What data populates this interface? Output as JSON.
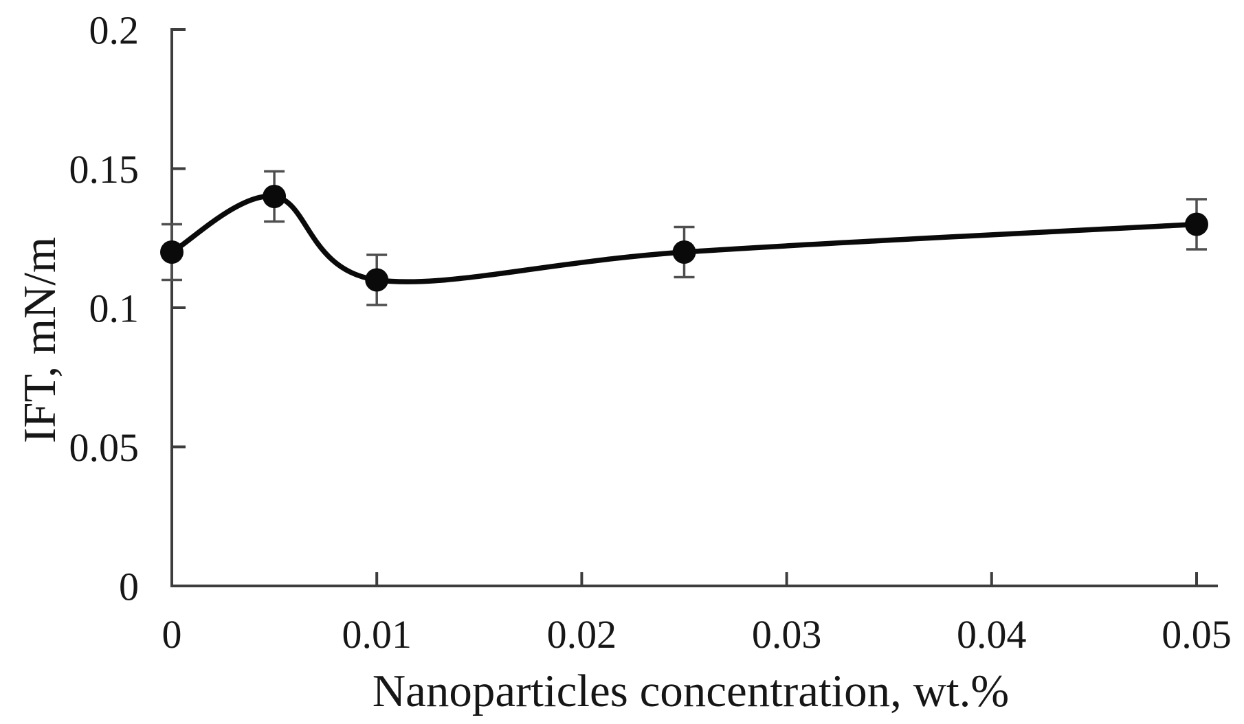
{
  "chart_data": {
    "type": "line",
    "title": "",
    "xlabel": "Nanoparticles concentration, wt.%",
    "ylabel": "IFT, mN/m",
    "x": [
      0,
      0.005,
      0.01,
      0.025,
      0.05
    ],
    "y": [
      0.12,
      0.14,
      0.11,
      0.12,
      0.13
    ],
    "y_error": [
      0.01,
      0.009,
      0.009,
      0.009,
      0.009
    ],
    "xlim": [
      0,
      0.05
    ],
    "ylim": [
      0,
      0.2
    ],
    "x_ticks": [
      0,
      0.01,
      0.02,
      0.03,
      0.04,
      0.05
    ],
    "x_tick_labels": [
      "0",
      "0.01",
      "0.02",
      "0.03",
      "0.04",
      "0.05"
    ],
    "y_ticks": [
      0,
      0.05,
      0.1,
      0.15,
      0.2
    ],
    "y_tick_labels": [
      "0",
      "0.05",
      "0.1",
      "0.15",
      "0.2"
    ],
    "grid": false,
    "legend": null,
    "smooth": true,
    "marker": "filled-circle",
    "line_width": 7.5,
    "marker_radius": 17,
    "colors": {
      "line": "#0a0a0a",
      "marker": "#0a0a0a",
      "error_bar": "#4f4f4f",
      "axis": "#3d3d3d",
      "text": "#161616",
      "background": "#ffffff"
    }
  }
}
